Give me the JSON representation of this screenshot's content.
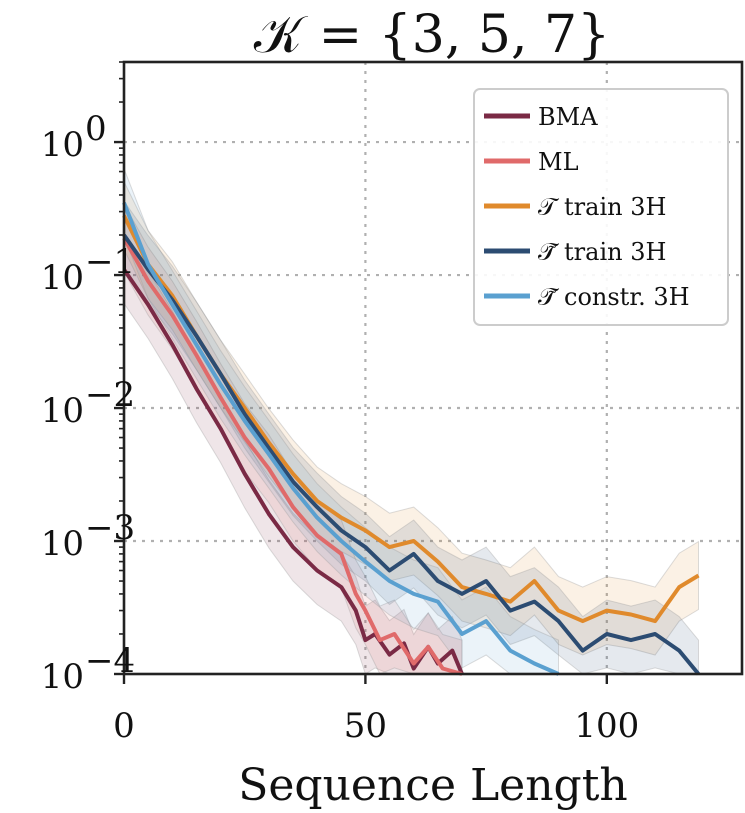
{
  "chart_data": {
    "type": "line",
    "title": "𝒦 = {3, 5, 7}",
    "xlabel": "Sequence Length",
    "ylabel": "",
    "xlim": [
      0,
      128
    ],
    "ylim": [
      0.0001,
      4
    ],
    "yscale": "log",
    "grid": true,
    "legend_position": "top-right",
    "x_ticks": [
      {
        "value": 0,
        "label": "0"
      },
      {
        "value": 50,
        "label": "50"
      },
      {
        "value": 100,
        "label": "100"
      }
    ],
    "y_ticks": [
      {
        "value": 1,
        "label": "10",
        "exponent": "0"
      },
      {
        "value": 0.1,
        "label": "10",
        "exponent": "−1"
      },
      {
        "value": 0.01,
        "label": "10",
        "exponent": "−2"
      },
      {
        "value": 0.001,
        "label": "10",
        "exponent": "−3"
      },
      {
        "value": 0.0001,
        "label": "10",
        "exponent": "−4"
      }
    ],
    "series": [
      {
        "name": "BMA",
        "color": "#7a2a45",
        "x": [
          0,
          5,
          10,
          15,
          20,
          25,
          30,
          35,
          40,
          45,
          48,
          50,
          52,
          55,
          58,
          60,
          63,
          65,
          68,
          70
        ],
        "y": [
          0.11,
          0.06,
          0.03,
          0.014,
          0.007,
          0.0032,
          0.0016,
          0.0009,
          0.0006,
          0.00045,
          0.0003,
          0.00018,
          0.0002,
          0.00014,
          0.00017,
          0.00011,
          0.00016,
          0.00012,
          0.00015,
          0.0001
        ]
      },
      {
        "name": "ML",
        "color": "#e06a6a",
        "x": [
          0,
          5,
          10,
          15,
          20,
          25,
          30,
          35,
          40,
          45,
          48,
          50,
          53,
          56,
          60,
          63,
          66,
          70
        ],
        "y": [
          0.19,
          0.09,
          0.05,
          0.025,
          0.012,
          0.006,
          0.0035,
          0.0018,
          0.0011,
          0.0008,
          0.0004,
          0.0003,
          0.00018,
          0.0002,
          0.00012,
          0.00016,
          0.00011,
          0.0001
        ]
      },
      {
        "name": "𝒯 train 3H",
        "color": "#e08a2c",
        "x": [
          0,
          5,
          10,
          15,
          20,
          25,
          30,
          35,
          40,
          45,
          50,
          55,
          60,
          65,
          70,
          75,
          80,
          85,
          90,
          95,
          100,
          105,
          110,
          115,
          119
        ],
        "y": [
          0.28,
          0.12,
          0.07,
          0.035,
          0.018,
          0.01,
          0.0055,
          0.0032,
          0.002,
          0.0015,
          0.0012,
          0.0009,
          0.001,
          0.0007,
          0.00045,
          0.0004,
          0.00035,
          0.0005,
          0.0003,
          0.00025,
          0.0003,
          0.00028,
          0.00025,
          0.00045,
          0.00055
        ]
      },
      {
        "name": "𝒯̃ train 3H",
        "color": "#2c4c72",
        "x": [
          0,
          5,
          10,
          15,
          20,
          25,
          30,
          35,
          40,
          45,
          50,
          55,
          60,
          65,
          70,
          75,
          80,
          85,
          90,
          95,
          100,
          105,
          110,
          115,
          119
        ],
        "y": [
          0.2,
          0.11,
          0.065,
          0.035,
          0.018,
          0.009,
          0.005,
          0.0028,
          0.0018,
          0.0012,
          0.0009,
          0.0006,
          0.0008,
          0.0005,
          0.0004,
          0.0005,
          0.0003,
          0.00035,
          0.00025,
          0.00015,
          0.0002,
          0.00018,
          0.0002,
          0.00015,
          0.0001
        ]
      },
      {
        "name": "𝒯̃ constr. 3H",
        "color": "#5aa0d0",
        "x": [
          0,
          5,
          10,
          15,
          20,
          25,
          30,
          35,
          40,
          45,
          50,
          55,
          60,
          65,
          70,
          75,
          80,
          85,
          90
        ],
        "y": [
          0.35,
          0.12,
          0.06,
          0.03,
          0.015,
          0.008,
          0.0045,
          0.0025,
          0.0015,
          0.001,
          0.0007,
          0.0005,
          0.0004,
          0.00035,
          0.0002,
          0.00025,
          0.00015,
          0.00012,
          0.0001
        ]
      }
    ]
  }
}
